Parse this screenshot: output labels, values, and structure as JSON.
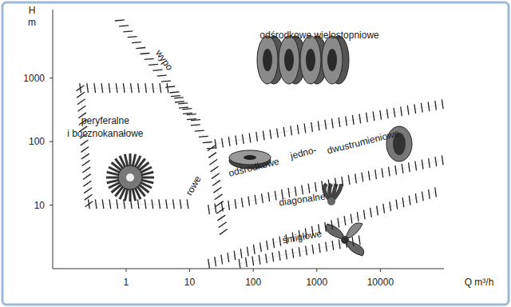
{
  "chart_data": {
    "type": "line",
    "log": true,
    "xlabel": "Q m³/h",
    "ylabel": "H m",
    "xlim": [
      0.07,
      100000
    ],
    "ylim": [
      1,
      12000
    ],
    "xticks": [
      1,
      10,
      100,
      1000,
      10000
    ],
    "yticks": [
      10,
      100,
      1000
    ],
    "series": [
      {
        "color": "#222222",
        "line_style": "hatched",
        "x": [
          0.79,
          12.4
        ],
        "values": [
          8130,
          219
        ]
      },
      {
        "color": "#222222",
        "line_style": "hatched",
        "x": [
          4.5,
          0.19,
          0.26,
          9.3
        ],
        "values": [
          697,
          697,
          10.4,
          10.4
        ]
      },
      {
        "color": "#222222",
        "line_style": "hatched",
        "x": [
          6,
          22,
          34
        ],
        "values": [
          521,
          79,
          3.8
        ]
      },
      {
        "color": "#222222",
        "line_style": "hatched",
        "x": [
          25.5,
          95000
        ],
        "values": [
          92,
          390
        ]
      },
      {
        "color": "#222222",
        "line_style": "hatched",
        "x": [
          20,
          95000
        ],
        "values": [
          8.5,
          51
        ]
      },
      {
        "color": "#222222",
        "line_style": "hatched",
        "x": [
          20,
          74000
        ],
        "values": [
          1.2,
          16
        ]
      },
      {
        "color": "#222222",
        "line_style": "hatched",
        "x": [
          61,
          4700
        ],
        "values": [
          1.2,
          2.8
        ]
      }
    ],
    "annotations": [
      {
        "text": "odśrodkowe wielostopniowe",
        "x": 1100,
        "y": 4570
      },
      {
        "text": "peryferalne",
        "x": 0.47,
        "y": 206
      },
      {
        "text": "i bocznokanałowe",
        "x": 0.47,
        "y": 130
      },
      {
        "text": "wypo",
        "x": 3.9,
        "y": 1900
      },
      {
        "text": "rowe",
        "x": 11.7,
        "y": 20
      },
      {
        "text": "odśrodkowe",
        "x": 103,
        "y": 38.5
      },
      {
        "text": "jedno-",
        "x": 620,
        "y": 65
      },
      {
        "text": "dwustrumieniowe",
        "x": 5400,
        "y": 97
      },
      {
        "text": "diagonalne",
        "x": 590,
        "y": 12
      },
      {
        "text": "śmigłowe",
        "x": 590,
        "y": 3.1
      }
    ]
  }
}
